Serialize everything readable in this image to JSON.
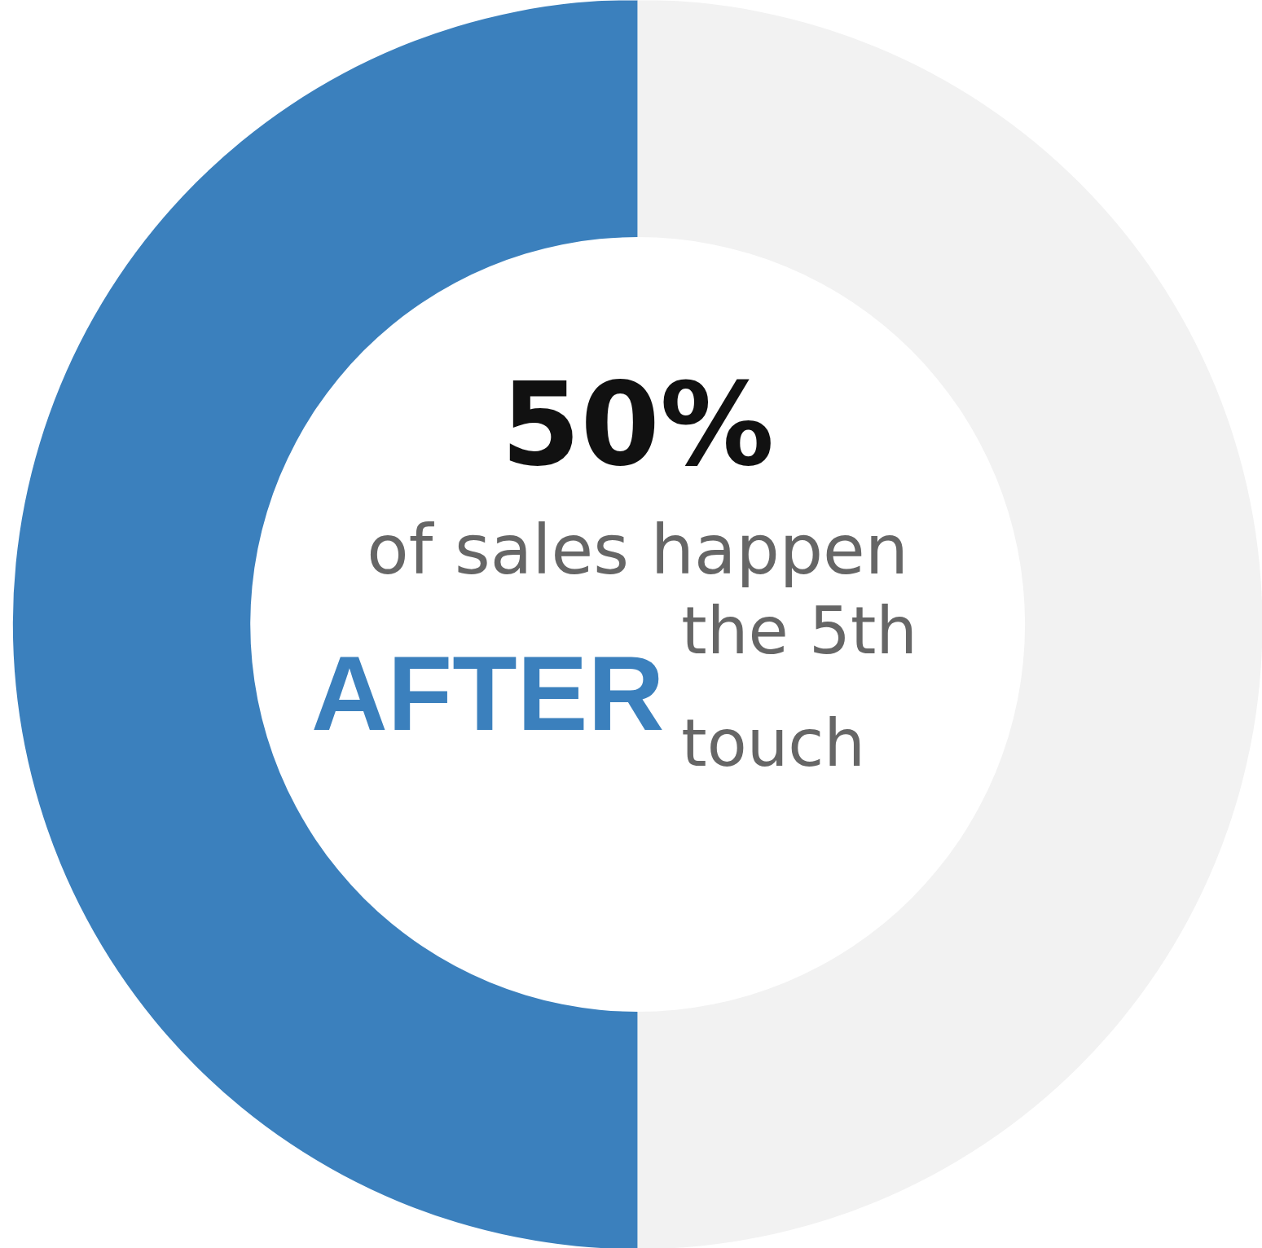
{
  "chart_data": {
    "type": "donut",
    "categories": [
      null,
      null
    ],
    "values": [
      50,
      50
    ],
    "colors": [
      "#3b80bd",
      "#f2f2f2"
    ],
    "value_labels": [
      "50%",
      null
    ],
    "annotations": [
      "of sales happen",
      "AFTER",
      "the 5th",
      "touch"
    ]
  }
}
